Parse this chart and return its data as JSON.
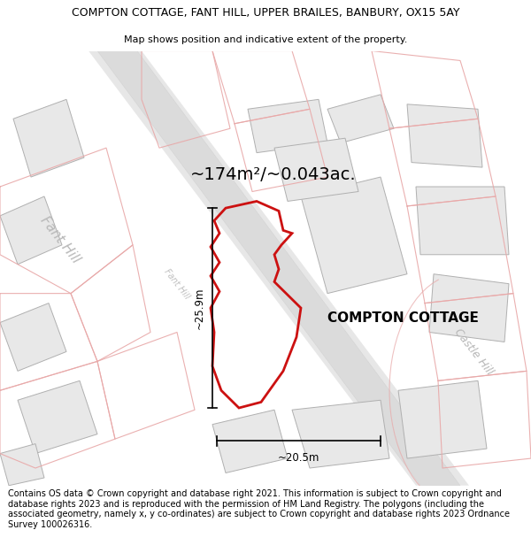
{
  "title_line1": "COMPTON COTTAGE, FANT HILL, UPPER BRAILES, BANBURY, OX15 5AY",
  "title_line2": "Map shows position and indicative extent of the property.",
  "area_text": "~174m²/~0.043ac.",
  "property_label": "COMPTON COTTAGE",
  "dim_width": "~20.5m",
  "dim_height": "~25.9m",
  "footer_text": "Contains OS data © Crown copyright and database right 2021. This information is subject to Crown copyright and database rights 2023 and is reproduced with the permission of HM Land Registry. The polygons (including the associated geometry, namely x, y co-ordinates) are subject to Crown copyright and database rights 2023 Ordnance Survey 100026316.",
  "bg_color": "#ffffff",
  "road_fill": "#d8d8d8",
  "building_fill": "#e8e8e8",
  "highlight_color": "#cc1111",
  "faint_color": "#f0b0b0",
  "plot_line_color": "#e8a8a8",
  "road_line_color": "#b0b0b0",
  "watermark_color": "#b8b8b8",
  "title_fontsize": 9.0,
  "subtitle_fontsize": 8.0,
  "area_fontsize": 14,
  "label_fontsize": 11,
  "footer_fontsize": 7.0
}
